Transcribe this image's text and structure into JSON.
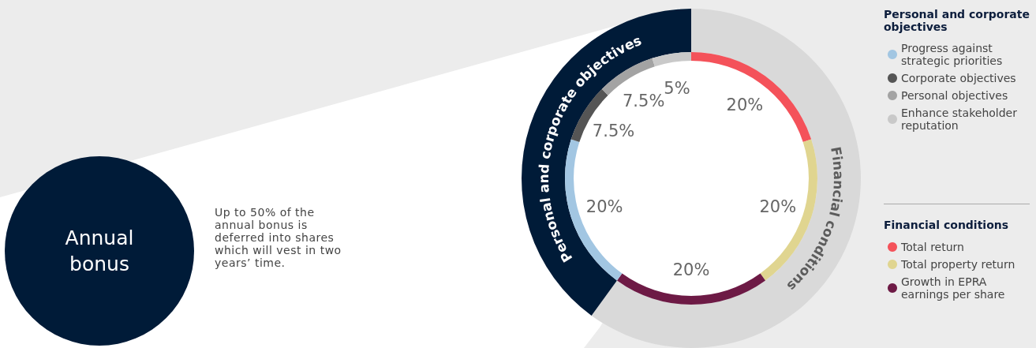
{
  "chart_data": [
    {
      "type": "other",
      "title": "Annual bonus",
      "annotations": [
        "Up to 50% of the annual bonus is deferred into shares which will vest in two years’ time."
      ]
    },
    {
      "type": "donut",
      "legend": "right",
      "categories": [
        "Total return",
        "Total property return",
        "Growth in EPRA earnings per share",
        "Progress against strategic priorities",
        "Corporate objectives",
        "Personal objectives",
        "Enhance stakeholder reputation"
      ],
      "values": [
        20,
        20,
        20,
        20,
        7.5,
        7.5,
        5
      ],
      "colors": [
        "#f4525a",
        "#e0d590",
        "#6d1a45",
        "#a2c6e2",
        "#555555",
        "#a3a3a3",
        "#c9c9c9"
      ],
      "value_labels": [
        "20%",
        "20%",
        "20%",
        "20%",
        "7.5%",
        "7.5%",
        "5%"
      ]
    },
    {
      "type": "donut",
      "categories": [
        "Financial conditions",
        "Personal and corporate objectives"
      ],
      "values": [
        60,
        40
      ],
      "colors": [
        "#d9d9d9",
        "#001b38"
      ]
    }
  ]
}
